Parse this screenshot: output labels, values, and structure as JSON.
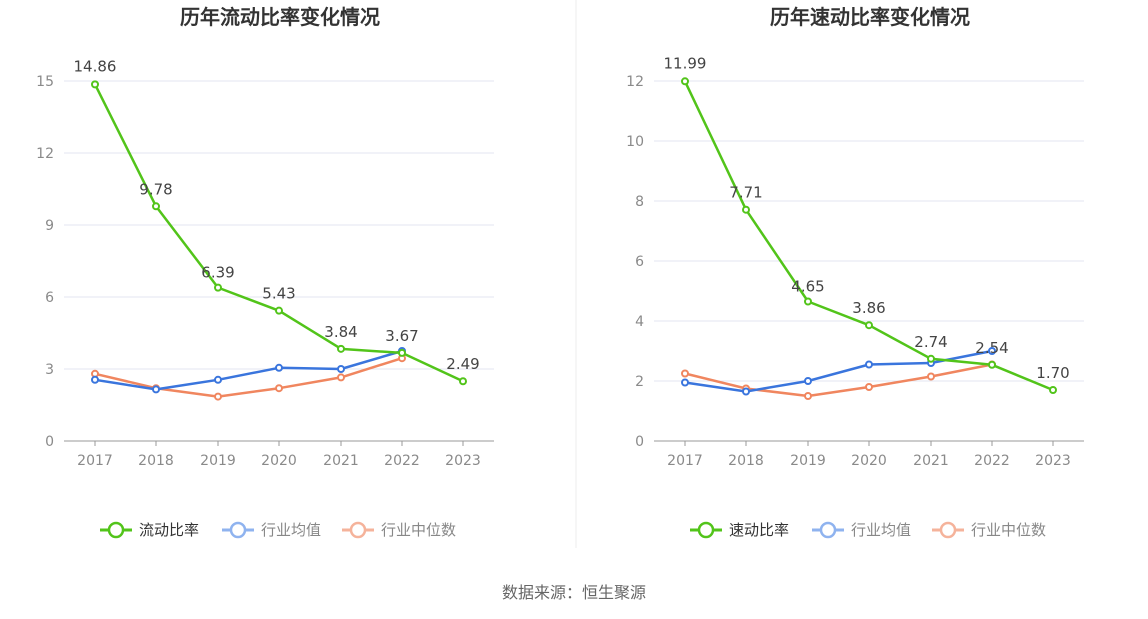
{
  "source": "数据来源：恒生聚源",
  "colors": {
    "main": "#52c41a",
    "avg": "#3a75dd",
    "median": "#f0865f",
    "grid": "#e3e6f0",
    "axis": "#999999"
  },
  "chart_data": [
    {
      "type": "line",
      "title": "历年流动比率变化情况",
      "categories": [
        "2017",
        "2018",
        "2019",
        "2020",
        "2021",
        "2022",
        "2023"
      ],
      "ylim": [
        0,
        15
      ],
      "yticks": [
        "0",
        "3",
        "6",
        "9",
        "12",
        "15"
      ],
      "grid": true,
      "legend_position": "bottom",
      "series": [
        {
          "name": "流动比率",
          "values": [
            14.86,
            9.78,
            6.39,
            5.43,
            3.84,
            3.67,
            2.49
          ],
          "labels": [
            "14.86",
            "9.78",
            "6.39",
            "5.43",
            "3.84",
            "3.67",
            "2.49"
          ]
        },
        {
          "name": "行业均值",
          "values": [
            2.55,
            2.15,
            2.55,
            3.05,
            3.0,
            3.75,
            null
          ]
        },
        {
          "name": "行业中位数",
          "values": [
            2.8,
            2.2,
            1.85,
            2.2,
            2.65,
            3.45,
            null
          ]
        }
      ]
    },
    {
      "type": "line",
      "title": "历年速动比率变化情况",
      "categories": [
        "2017",
        "2018",
        "2019",
        "2020",
        "2021",
        "2022",
        "2023"
      ],
      "ylim": [
        0,
        12
      ],
      "yticks": [
        "0",
        "2",
        "4",
        "6",
        "8",
        "10",
        "12"
      ],
      "grid": true,
      "legend_position": "bottom",
      "series": [
        {
          "name": "速动比率",
          "values": [
            11.99,
            7.71,
            4.65,
            3.86,
            2.74,
            2.54,
            1.7
          ],
          "labels": [
            "11.99",
            "7.71",
            "4.65",
            "3.86",
            "2.74",
            "2.54",
            "1.70"
          ]
        },
        {
          "name": "行业均值",
          "values": [
            1.95,
            1.65,
            2.0,
            2.55,
            2.6,
            3.0,
            null
          ]
        },
        {
          "name": "行业中位数",
          "values": [
            2.25,
            1.75,
            1.5,
            1.8,
            2.15,
            2.55,
            null
          ]
        }
      ]
    }
  ]
}
